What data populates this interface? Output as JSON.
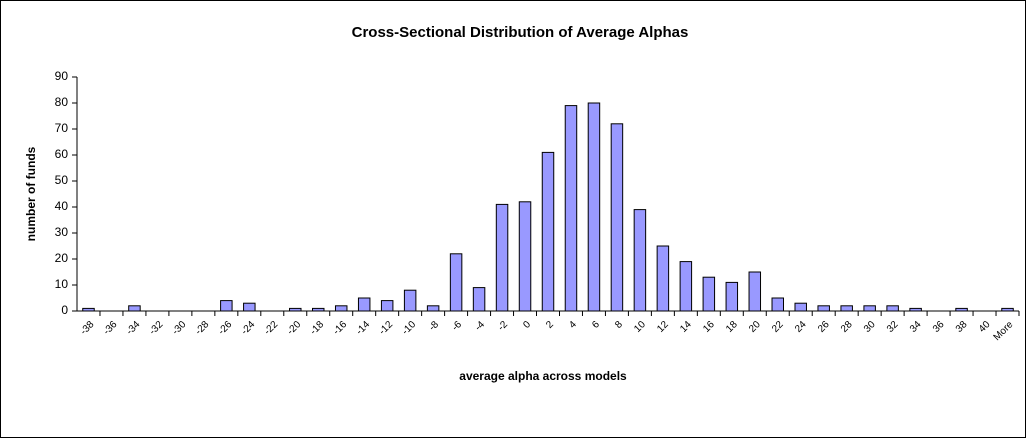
{
  "chart_data": {
    "type": "bar",
    "title": "Cross-Sectional Distribution of Average Alphas",
    "x_label": "average alpha across models",
    "y_label": "number of funds",
    "categories": [
      "-38",
      "-36",
      "-34",
      "-32",
      "-30",
      "-28",
      "-26",
      "-24",
      "-22",
      "-20",
      "-18",
      "-16",
      "-14",
      "-12",
      "-10",
      "-8",
      "-6",
      "-4",
      "-2",
      "0",
      "2",
      "4",
      "6",
      "8",
      "10",
      "12",
      "14",
      "16",
      "18",
      "20",
      "22",
      "24",
      "26",
      "28",
      "30",
      "32",
      "34",
      "36",
      "38",
      "40",
      "More"
    ],
    "values": [
      1,
      0,
      2,
      0,
      0,
      0,
      4,
      3,
      0,
      1,
      1,
      2,
      5,
      4,
      8,
      2,
      22,
      9,
      41,
      42,
      61,
      79,
      80,
      72,
      39,
      25,
      19,
      13,
      11,
      15,
      5,
      3,
      2,
      2,
      2,
      2,
      1,
      0,
      1,
      0,
      1
    ],
    "color": "#9999ff",
    "ylim": [
      0,
      90
    ],
    "yticks": [
      0,
      10,
      20,
      30,
      40,
      50,
      60,
      70,
      80,
      90
    ],
    "grid": false
  }
}
